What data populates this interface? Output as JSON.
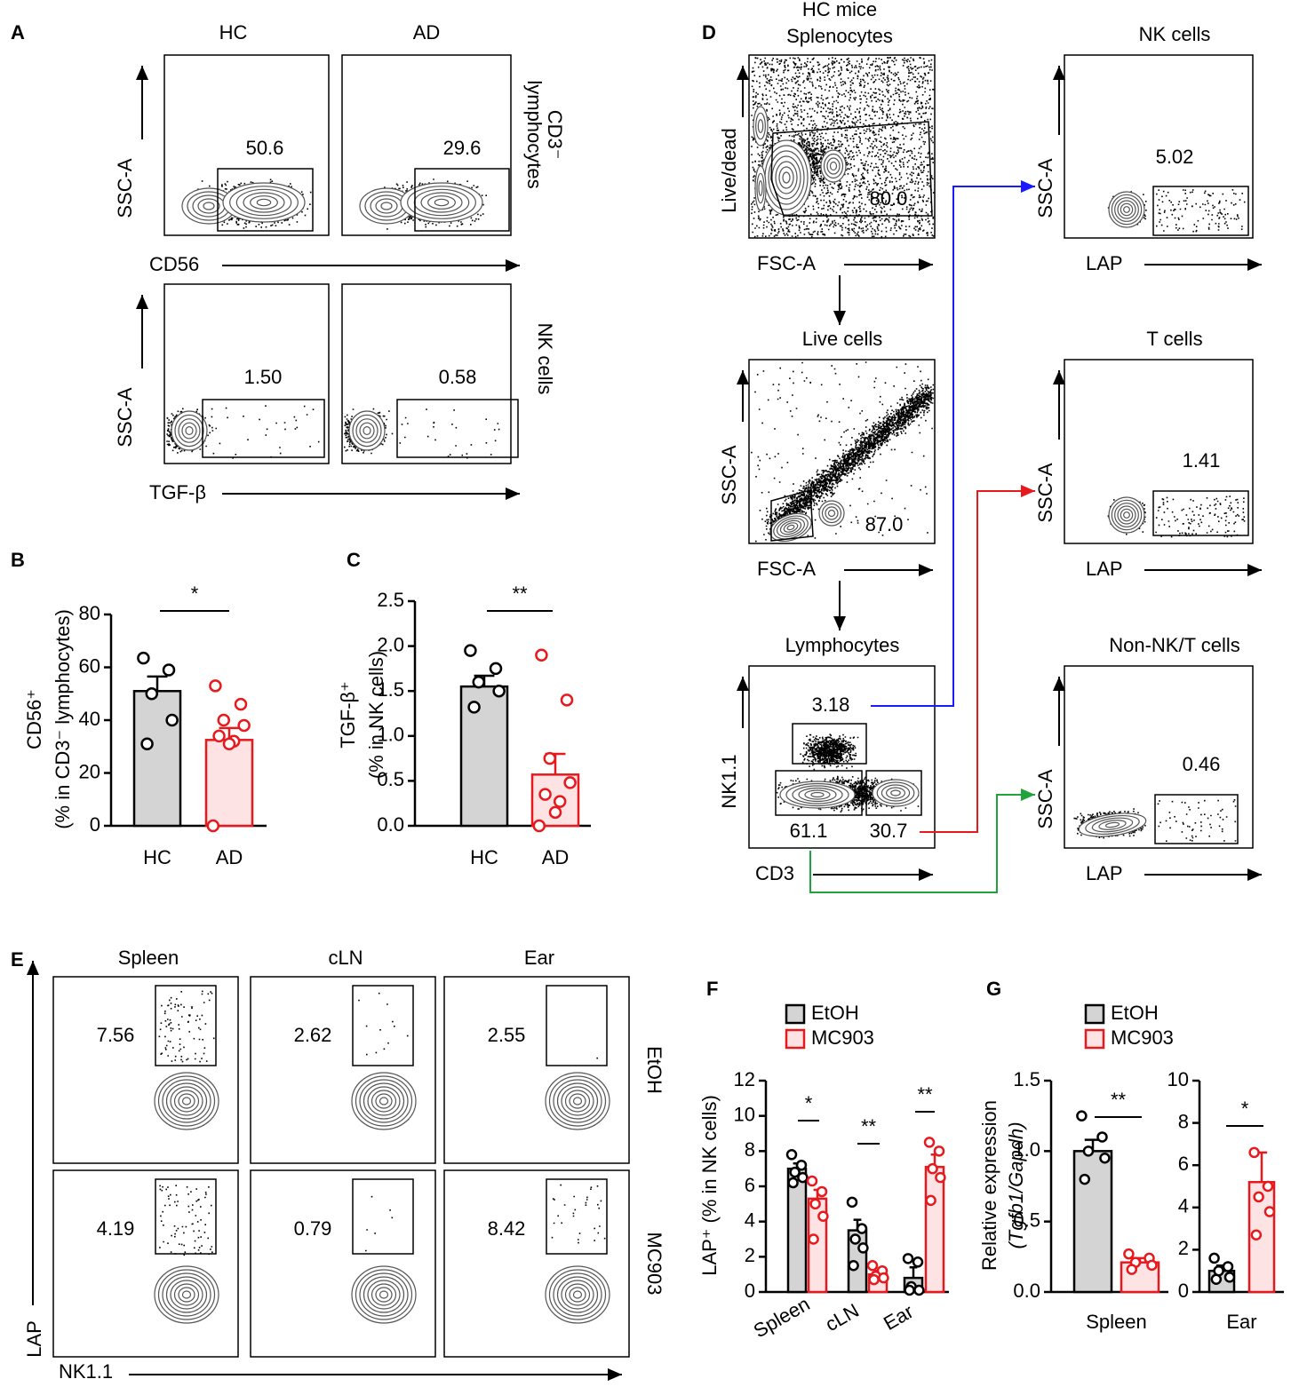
{
  "panel_labels": [
    "A",
    "B",
    "C",
    "D",
    "E",
    "F",
    "G"
  ],
  "panel_a": {
    "columns": [
      "HC",
      "AD"
    ],
    "rows": [
      {
        "label_lines": [
          "CD3⁻",
          "lymphocytes"
        ],
        "y_axis": "SSC-A",
        "x_axis": "CD56",
        "gates": [
          "50.6",
          "29.6"
        ]
      },
      {
        "label_lines": [
          "NK cells"
        ],
        "y_axis": "SSC-A",
        "x_axis": "TGF-β",
        "gates": [
          "1.50",
          "0.58"
        ]
      }
    ]
  },
  "panel_d": {
    "title_lines": [
      "HC mice",
      "Splenocytes"
    ],
    "gating": [
      {
        "y_axis": "Live/dead",
        "x_axis": "FSC-A",
        "gates": [
          "80.0"
        ]
      },
      {
        "title": "Live cells",
        "y_axis": "SSC-A",
        "x_axis": "FSC-A",
        "gates": [
          "87.0"
        ]
      },
      {
        "title": "Lymphocytes",
        "y_axis": "NK1.1",
        "x_axis": "CD3",
        "gates": [
          "3.18",
          "61.1",
          "30.7"
        ],
        "gate_colors": [
          "#1a1aff",
          "#1fa33a",
          "#e8191c"
        ]
      }
    ],
    "populations": [
      {
        "title": "NK cells",
        "color": "#1a1aff",
        "y_axis": "SSC-A",
        "x_axis": "LAP",
        "gate": "5.02"
      },
      {
        "title": "T cells",
        "color": "#e8191c",
        "y_axis": "SSC-A",
        "x_axis": "LAP",
        "gate": "1.41"
      },
      {
        "title": "Non-NK/T cells",
        "color": "#1fa33a",
        "y_axis": "SSC-A",
        "x_axis": "LAP",
        "gate": "0.46"
      }
    ]
  },
  "panel_e": {
    "columns": [
      "Spleen",
      "cLN",
      "Ear"
    ],
    "rows": [
      "EtOH",
      "MC903"
    ],
    "gates": [
      [
        "7.56",
        "2.62",
        "2.55"
      ],
      [
        "4.19",
        "0.79",
        "8.42"
      ]
    ],
    "y_axis": "LAP",
    "x_axis": "NK1.1"
  },
  "chart_data": [
    {
      "type": "bar",
      "ylabel": [
        "CD56⁺",
        "(% in CD3⁻ lymphocytes)"
      ],
      "categories": [
        "HC",
        "AD"
      ],
      "values": [
        51,
        32.5
      ],
      "errors": [
        5.5,
        4.5
      ],
      "points": [
        [
          63.5,
          59,
          50,
          40,
          31
        ],
        [
          53,
          46,
          40,
          38,
          34,
          32,
          31,
          0
        ]
      ],
      "colors": [
        "#000000",
        "#e8191c"
      ],
      "fills": [
        "#d4d4d4",
        "#fde3e3"
      ],
      "ylim": [
        0,
        80
      ],
      "yticks": [
        0,
        20,
        40,
        60,
        80
      ],
      "significance": "*"
    },
    {
      "type": "bar",
      "ylabel": [
        "TGF-β⁺",
        "(% in NK cells)"
      ],
      "categories": [
        "HC",
        "AD"
      ],
      "values": [
        1.55,
        0.57
      ],
      "errors": [
        0.12,
        0.23
      ],
      "points": [
        [
          1.95,
          1.75,
          1.6,
          1.5,
          1.32
        ],
        [
          1.9,
          1.4,
          0.75,
          0.48,
          0.35,
          0.27,
          0.15,
          0
        ]
      ],
      "colors": [
        "#000000",
        "#e8191c"
      ],
      "fills": [
        "#d4d4d4",
        "#fde3e3"
      ],
      "ylim": [
        0,
        2.5
      ],
      "yticks": [
        {
          "value": 0,
          "label": "0.0"
        },
        0.5,
        {
          "value": 1,
          "label": "1.0"
        },
        1.5,
        {
          "value": 2,
          "label": "2.0"
        },
        2.5
      ],
      "significance": "**"
    },
    {
      "type": "grouped_bar",
      "ylabel": [
        "LAP⁺ (% in NK cells)"
      ],
      "categories": [
        "Spleen",
        "cLN",
        "Ear"
      ],
      "series": [
        {
          "name": "EtOH",
          "color": "#000000",
          "fill": "#d4d4d4",
          "values": [
            7.0,
            3.5,
            0.8
          ],
          "errors": [
            0.3,
            0.6,
            0.6
          ],
          "points": [
            [
              7.8,
              7.2,
              6.8,
              6.5,
              6.2
            ],
            [
              5.1,
              3.6,
              3.0,
              2.5,
              1.5
            ],
            [
              1.9,
              1.7,
              0.3,
              0.1,
              0.1
            ]
          ]
        },
        {
          "name": "MC903",
          "color": "#e8191c",
          "fill": "#fde3e3",
          "values": [
            5.3,
            1.0,
            7.1
          ],
          "errors": [
            0.5,
            0.2,
            0.7
          ],
          "points": [
            [
              6.3,
              5.7,
              5.0,
              4.3,
              3.0
            ],
            [
              1.5,
              1.2,
              0.9,
              0.8,
              0.7
            ],
            [
              8.5,
              8.0,
              7.0,
              6.5,
              5.2
            ]
          ]
        }
      ],
      "ylim": [
        0,
        12
      ],
      "yticks": [
        0,
        2,
        4,
        6,
        8,
        10,
        12
      ],
      "significance": [
        "*",
        "**",
        "**"
      ]
    },
    {
      "type": "split_bar",
      "ylabel": [
        "Relative expression",
        "(Tgfb1/Gapdh)"
      ],
      "categories": [
        "Spleen",
        "Ear"
      ],
      "series": [
        {
          "name": "EtOH",
          "color": "#000000",
          "fill": "#d4d4d4",
          "values": [
            1.0,
            1.0
          ],
          "errors": [
            0.08,
            0.25
          ],
          "points": [
            [
              1.25,
              1.1,
              1.0,
              0.95,
              0.8
            ],
            [
              1.6,
              1.2,
              1.0,
              0.7,
              0.6
            ]
          ]
        },
        {
          "name": "MC903",
          "color": "#e8191c",
          "fill": "#fde3e3",
          "values": [
            0.21,
            5.2
          ],
          "errors": [
            0.03,
            1.4
          ],
          "points": [
            [
              0.27,
              0.24,
              0.21,
              0.19,
              0.16
            ],
            [
              6.6,
              5.0,
              4.5,
              3.8,
              2.7
            ]
          ]
        }
      ],
      "subplots": [
        {
          "ylim": [
            0,
            1.5
          ],
          "yticks": [
            {
              "value": 0,
              "label": "0.0"
            },
            0.5,
            {
              "value": 1,
              "label": "1.0"
            },
            1.5
          ],
          "significance": "**"
        },
        {
          "ylim": [
            0,
            10
          ],
          "yticks": [
            0,
            2,
            4,
            6,
            8,
            10
          ],
          "significance": "*"
        }
      ]
    }
  ]
}
